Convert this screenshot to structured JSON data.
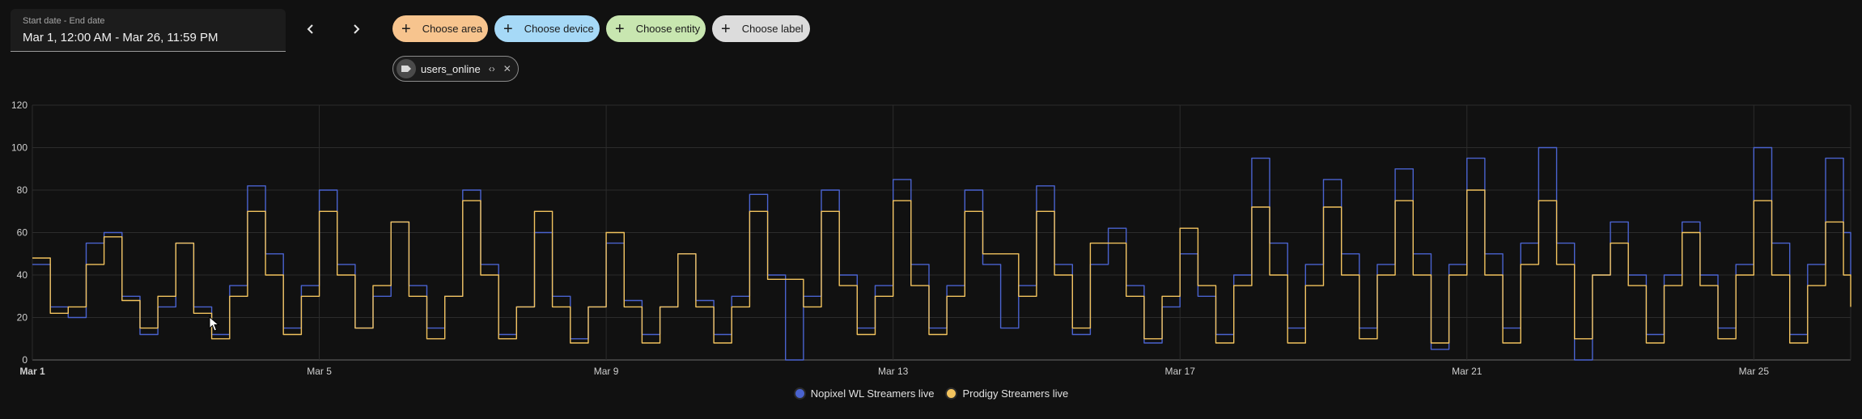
{
  "date_picker": {
    "label": "Start date - End date",
    "value": "Mar 1, 12:00 AM - Mar 26, 11:59 PM"
  },
  "nav": {
    "prev_icon": "chevron-left-icon",
    "next_icon": "chevron-right-icon"
  },
  "filters": [
    {
      "label": "Choose area",
      "color": "#f7c48e"
    },
    {
      "label": "Choose device",
      "color": "#a6d9f7"
    },
    {
      "label": "Choose entity",
      "color": "#c8e6b0"
    },
    {
      "label": "Choose label",
      "color": "#dcdcdc"
    }
  ],
  "entity_chip": {
    "label": "users_online",
    "icon": "tag-icon"
  },
  "chart_data": {
    "type": "line",
    "x_start": "Mar 1",
    "x_end": "Mar 26",
    "xlim_days": [
      1,
      26.35
    ],
    "ylim": [
      0,
      120
    ],
    "y_ticks": [
      0,
      20,
      40,
      60,
      80,
      100,
      120
    ],
    "x_ticks": [
      {
        "day": 1,
        "label": "Mar 1"
      },
      {
        "day": 5,
        "label": "Mar 5"
      },
      {
        "day": 9,
        "label": "Mar 9"
      },
      {
        "day": 13,
        "label": "Mar 13"
      },
      {
        "day": 17,
        "label": "Mar 17"
      },
      {
        "day": 21,
        "label": "Mar 21"
      },
      {
        "day": 25,
        "label": "Mar 25"
      }
    ],
    "grid": true,
    "legend_position": "bottom-center",
    "series": [
      {
        "name": "Nopixel WL Streamers live",
        "color": "#4a63cf",
        "points": [
          [
            1.0,
            45
          ],
          [
            1.25,
            25
          ],
          [
            1.5,
            20
          ],
          [
            1.75,
            55
          ],
          [
            2.0,
            60
          ],
          [
            2.25,
            30
          ],
          [
            2.5,
            12
          ],
          [
            2.75,
            25
          ],
          [
            3.0,
            55
          ],
          [
            3.25,
            25
          ],
          [
            3.5,
            12
          ],
          [
            3.75,
            35
          ],
          [
            4.0,
            82
          ],
          [
            4.25,
            50
          ],
          [
            4.5,
            15
          ],
          [
            4.75,
            35
          ],
          [
            5.0,
            80
          ],
          [
            5.25,
            45
          ],
          [
            5.5,
            15
          ],
          [
            5.75,
            30
          ],
          [
            6.0,
            65
          ],
          [
            6.25,
            35
          ],
          [
            6.5,
            15
          ],
          [
            6.75,
            30
          ],
          [
            7.0,
            80
          ],
          [
            7.25,
            45
          ],
          [
            7.5,
            12
          ],
          [
            7.75,
            25
          ],
          [
            8.0,
            60
          ],
          [
            8.25,
            30
          ],
          [
            8.5,
            10
          ],
          [
            8.75,
            25
          ],
          [
            9.0,
            55
          ],
          [
            9.25,
            28
          ],
          [
            9.5,
            12
          ],
          [
            9.75,
            25
          ],
          [
            10.0,
            50
          ],
          [
            10.25,
            28
          ],
          [
            10.5,
            12
          ],
          [
            10.75,
            30
          ],
          [
            11.0,
            78
          ],
          [
            11.25,
            40
          ],
          [
            11.5,
            0
          ],
          [
            11.75,
            30
          ],
          [
            12.0,
            80
          ],
          [
            12.25,
            40
          ],
          [
            12.5,
            15
          ],
          [
            12.75,
            35
          ],
          [
            13.0,
            85
          ],
          [
            13.25,
            45
          ],
          [
            13.5,
            15
          ],
          [
            13.75,
            35
          ],
          [
            14.0,
            80
          ],
          [
            14.25,
            45
          ],
          [
            14.5,
            15
          ],
          [
            14.75,
            35
          ],
          [
            15.0,
            82
          ],
          [
            15.25,
            45
          ],
          [
            15.5,
            12
          ],
          [
            15.75,
            45
          ],
          [
            16.0,
            62
          ],
          [
            16.25,
            35
          ],
          [
            16.5,
            8
          ],
          [
            16.75,
            25
          ],
          [
            17.0,
            50
          ],
          [
            17.25,
            30
          ],
          [
            17.5,
            12
          ],
          [
            17.75,
            40
          ],
          [
            18.0,
            95
          ],
          [
            18.25,
            55
          ],
          [
            18.5,
            15
          ],
          [
            18.75,
            45
          ],
          [
            19.0,
            85
          ],
          [
            19.25,
            50
          ],
          [
            19.5,
            15
          ],
          [
            19.75,
            45
          ],
          [
            20.0,
            90
          ],
          [
            20.25,
            50
          ],
          [
            20.5,
            5
          ],
          [
            20.75,
            45
          ],
          [
            21.0,
            95
          ],
          [
            21.25,
            50
          ],
          [
            21.5,
            15
          ],
          [
            21.75,
            55
          ],
          [
            22.0,
            100
          ],
          [
            22.25,
            55
          ],
          [
            22.5,
            0
          ],
          [
            22.75,
            40
          ],
          [
            23.0,
            65
          ],
          [
            23.25,
            40
          ],
          [
            23.5,
            12
          ],
          [
            23.75,
            40
          ],
          [
            24.0,
            65
          ],
          [
            24.25,
            40
          ],
          [
            24.5,
            15
          ],
          [
            24.75,
            45
          ],
          [
            25.0,
            100
          ],
          [
            25.25,
            55
          ],
          [
            25.5,
            12
          ],
          [
            25.75,
            45
          ],
          [
            26.0,
            95
          ],
          [
            26.25,
            60
          ],
          [
            26.35,
            40
          ]
        ]
      },
      {
        "name": "Prodigy Streamers live",
        "color": "#f2c35e",
        "points": [
          [
            1.0,
            48
          ],
          [
            1.25,
            22
          ],
          [
            1.5,
            25
          ],
          [
            1.75,
            45
          ],
          [
            2.0,
            58
          ],
          [
            2.25,
            28
          ],
          [
            2.5,
            15
          ],
          [
            2.75,
            30
          ],
          [
            3.0,
            55
          ],
          [
            3.25,
            22
          ],
          [
            3.5,
            10
          ],
          [
            3.75,
            30
          ],
          [
            4.0,
            70
          ],
          [
            4.25,
            40
          ],
          [
            4.5,
            12
          ],
          [
            4.75,
            30
          ],
          [
            5.0,
            70
          ],
          [
            5.25,
            40
          ],
          [
            5.5,
            15
          ],
          [
            5.75,
            35
          ],
          [
            6.0,
            65
          ],
          [
            6.25,
            30
          ],
          [
            6.5,
            10
          ],
          [
            6.75,
            30
          ],
          [
            7.0,
            75
          ],
          [
            7.25,
            40
          ],
          [
            7.5,
            10
          ],
          [
            7.75,
            25
          ],
          [
            8.0,
            70
          ],
          [
            8.25,
            25
          ],
          [
            8.5,
            8
          ],
          [
            8.75,
            25
          ],
          [
            9.0,
            60
          ],
          [
            9.25,
            25
          ],
          [
            9.5,
            8
          ],
          [
            9.75,
            25
          ],
          [
            10.0,
            50
          ],
          [
            10.25,
            25
          ],
          [
            10.5,
            8
          ],
          [
            10.75,
            25
          ],
          [
            11.0,
            70
          ],
          [
            11.25,
            38
          ],
          [
            11.5,
            38
          ],
          [
            11.75,
            25
          ],
          [
            12.0,
            70
          ],
          [
            12.25,
            35
          ],
          [
            12.5,
            12
          ],
          [
            12.75,
            30
          ],
          [
            13.0,
            75
          ],
          [
            13.25,
            35
          ],
          [
            13.5,
            12
          ],
          [
            13.75,
            30
          ],
          [
            14.0,
            70
          ],
          [
            14.25,
            50
          ],
          [
            14.5,
            50
          ],
          [
            14.75,
            30
          ],
          [
            15.0,
            70
          ],
          [
            15.25,
            40
          ],
          [
            15.5,
            15
          ],
          [
            15.75,
            55
          ],
          [
            16.0,
            55
          ],
          [
            16.25,
            30
          ],
          [
            16.5,
            10
          ],
          [
            16.75,
            30
          ],
          [
            17.0,
            62
          ],
          [
            17.25,
            35
          ],
          [
            17.5,
            8
          ],
          [
            17.75,
            35
          ],
          [
            18.0,
            72
          ],
          [
            18.25,
            40
          ],
          [
            18.5,
            8
          ],
          [
            18.75,
            35
          ],
          [
            19.0,
            72
          ],
          [
            19.25,
            40
          ],
          [
            19.5,
            10
          ],
          [
            19.75,
            40
          ],
          [
            20.0,
            75
          ],
          [
            20.25,
            40
          ],
          [
            20.5,
            8
          ],
          [
            20.75,
            40
          ],
          [
            21.0,
            80
          ],
          [
            21.25,
            40
          ],
          [
            21.5,
            8
          ],
          [
            21.75,
            45
          ],
          [
            22.0,
            75
          ],
          [
            22.25,
            45
          ],
          [
            22.5,
            10
          ],
          [
            22.75,
            40
          ],
          [
            23.0,
            55
          ],
          [
            23.25,
            35
          ],
          [
            23.5,
            8
          ],
          [
            23.75,
            35
          ],
          [
            24.0,
            60
          ],
          [
            24.25,
            35
          ],
          [
            24.5,
            10
          ],
          [
            24.75,
            40
          ],
          [
            25.0,
            75
          ],
          [
            25.25,
            40
          ],
          [
            25.5,
            8
          ],
          [
            25.75,
            35
          ],
          [
            26.0,
            65
          ],
          [
            26.25,
            40
          ],
          [
            26.35,
            25
          ]
        ]
      }
    ]
  }
}
